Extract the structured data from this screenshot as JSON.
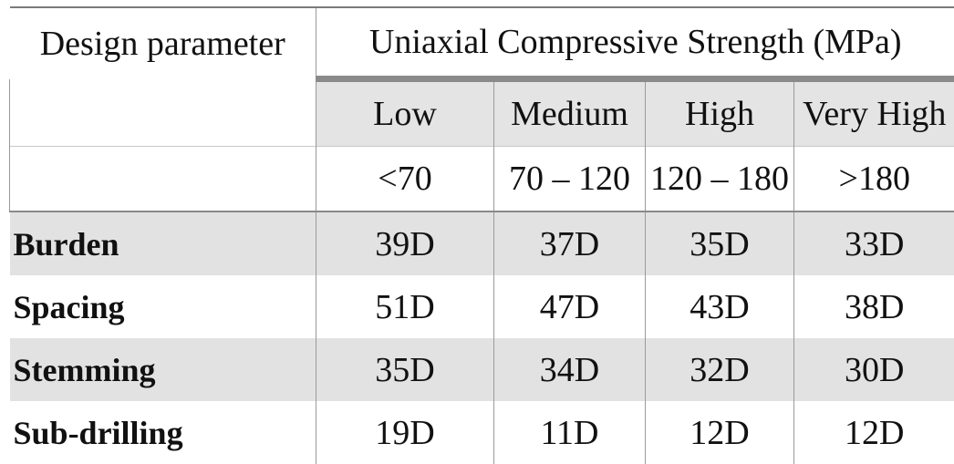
{
  "table": {
    "param_header": "Design parameter",
    "group_header": "Uniaxial Compressive Strength (MPa)",
    "classes": [
      "Low",
      "Medium",
      "High",
      "Very High"
    ],
    "ranges": [
      "<70",
      "70 – 120",
      "120 – 180",
      ">180"
    ],
    "rows": [
      {
        "label": "Burden",
        "values": [
          "39D",
          "37D",
          "35D",
          "33D"
        ],
        "shaded": true
      },
      {
        "label": "Spacing",
        "values": [
          "51D",
          "47D",
          "43D",
          "38D"
        ],
        "shaded": false
      },
      {
        "label": "Stemming",
        "values": [
          "35D",
          "34D",
          "32D",
          "30D"
        ],
        "shaded": true
      },
      {
        "label": "Sub-drilling",
        "values": [
          "19D",
          "11D",
          "12D",
          "12D"
        ],
        "shaded": false
      }
    ]
  }
}
